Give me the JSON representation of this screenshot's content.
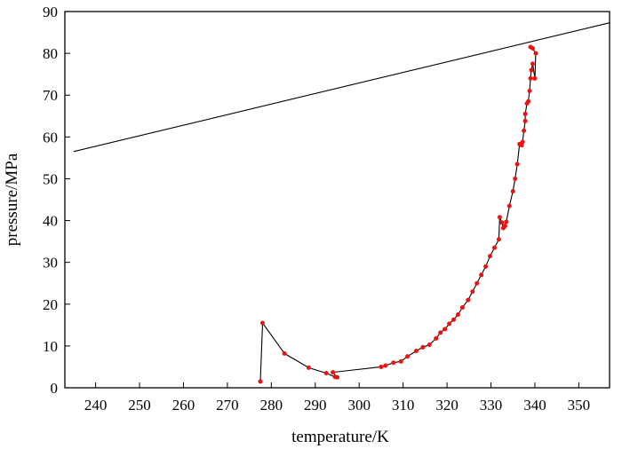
{
  "chart_data": {
    "type": "line",
    "xlabel": "temperature/K",
    "ylabel": "pressure/MPa",
    "xlim": [
      233,
      357
    ],
    "ylim": [
      0,
      90
    ],
    "xticks": [
      240,
      250,
      260,
      270,
      280,
      290,
      300,
      310,
      320,
      330,
      340,
      350
    ],
    "yticks": [
      0,
      10,
      20,
      30,
      40,
      50,
      60,
      70,
      80,
      90
    ],
    "grid": false,
    "series": [
      {
        "style": "black-line",
        "color": "#000000",
        "x": [
          235,
          357
        ],
        "y": [
          56.5,
          87.3
        ]
      },
      {
        "style": "red-markers-black-line",
        "color": "#ee1111",
        "line_color": "#000000",
        "x": [
          277.5,
          278.0,
          283.0,
          288.5,
          292.5,
          294.5,
          295.0,
          294.0,
          305.0,
          306.0,
          307.8,
          309.5,
          311.0,
          313.0,
          314.5,
          316.0,
          317.5,
          318.5,
          319.5,
          320.5,
          321.5,
          322.5,
          323.5,
          324.8,
          325.8,
          326.8,
          327.8,
          328.8,
          329.8,
          330.8,
          331.8,
          332.0,
          332.5,
          332.8,
          333.2,
          333.5,
          334.2,
          335.0,
          335.5,
          336.0,
          336.5,
          337.0,
          337.2,
          337.5,
          337.8,
          337.8,
          338.2,
          338.5,
          338.8,
          339.0,
          339.2,
          339.5,
          340.0,
          340.2,
          339.5,
          339.0
        ],
        "y": [
          1.5,
          15.5,
          8.2,
          4.8,
          3.5,
          2.6,
          2.5,
          3.7,
          5.0,
          5.3,
          6.0,
          6.3,
          7.5,
          8.8,
          9.7,
          10.3,
          11.8,
          13.2,
          14.0,
          15.3,
          16.3,
          17.5,
          19.2,
          21.0,
          23.0,
          25.0,
          27.0,
          29.0,
          31.5,
          33.5,
          35.5,
          40.8,
          39.5,
          38.2,
          38.7,
          39.7,
          43.5,
          47.0,
          50.0,
          53.5,
          58.3,
          58.0,
          58.8,
          61.5,
          63.8,
          65.5,
          68.0,
          68.5,
          71.0,
          74.0,
          76.0,
          77.5,
          74.0,
          80.0,
          81.2,
          81.5
        ]
      }
    ]
  }
}
